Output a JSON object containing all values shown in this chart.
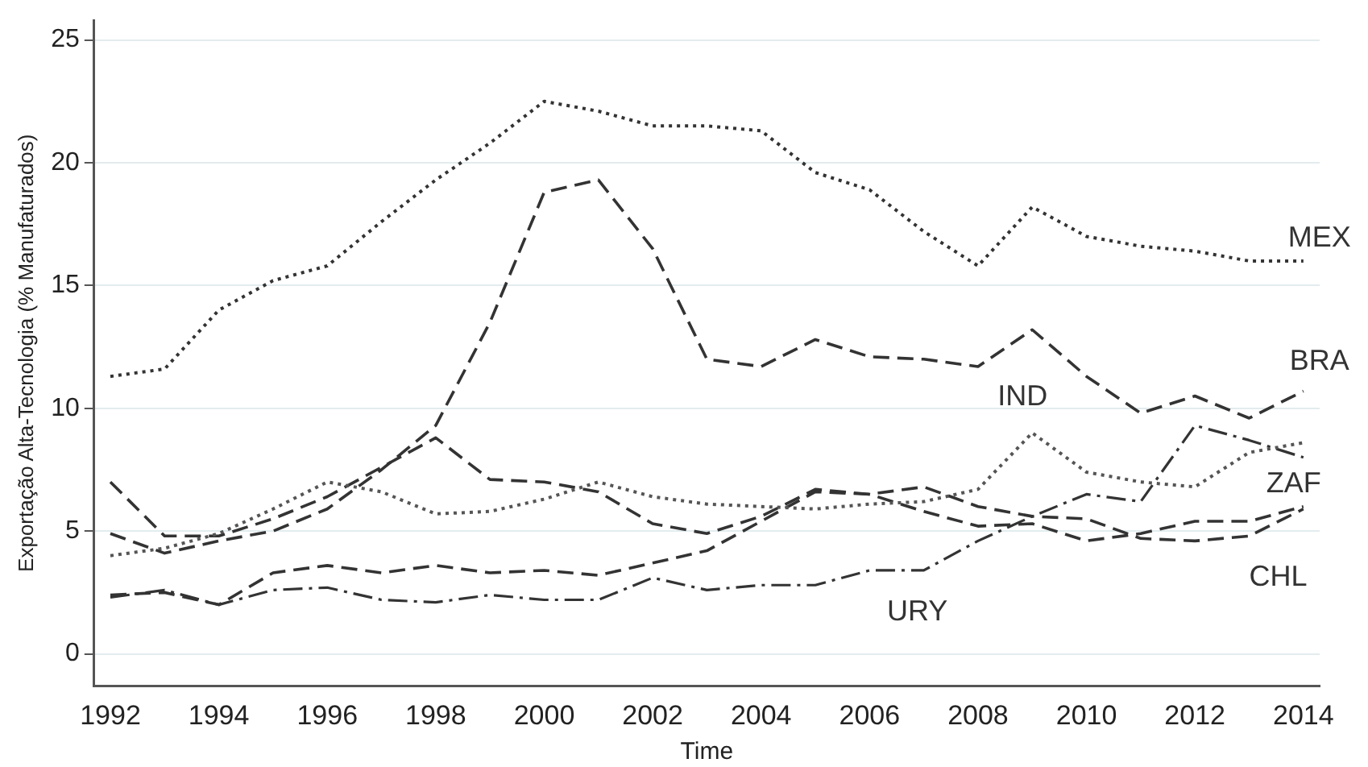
{
  "chart_data": {
    "type": "line",
    "xlabel": "Time",
    "ylabel": "Exportação Alta-Tecnologia (% Manufaturados)",
    "x": [
      1992,
      1993,
      1994,
      1995,
      1996,
      1997,
      1998,
      1999,
      2000,
      2001,
      2002,
      2003,
      2004,
      2005,
      2006,
      2007,
      2008,
      2009,
      2010,
      2011,
      2012,
      2013,
      2014
    ],
    "xlim": [
      1991.7,
      2014.3
    ],
    "xticks": [
      1992,
      1994,
      1996,
      1998,
      2000,
      2002,
      2004,
      2006,
      2008,
      2010,
      2012,
      2014
    ],
    "ylim": [
      -1.3,
      25.8
    ],
    "yticks": [
      0,
      5,
      10,
      15,
      20,
      25
    ],
    "grid": "y",
    "legend": false,
    "marker": "none",
    "series": [
      {
        "name": "MEX",
        "color": "#333333",
        "line_style": "dotted",
        "values": [
          11.3,
          11.6,
          14.0,
          15.2,
          15.8,
          17.6,
          19.3,
          20.8,
          22.5,
          22.1,
          21.5,
          21.5,
          21.3,
          19.6,
          18.9,
          17.2,
          15.8,
          18.2,
          17.0,
          16.6,
          16.4,
          16.0,
          16.0
        ]
      },
      {
        "name": "BRA",
        "color": "#333333",
        "line_style": "dashed",
        "values": [
          4.9,
          4.1,
          4.6,
          5.0,
          5.9,
          7.5,
          9.3,
          13.5,
          18.8,
          19.3,
          16.5,
          12.0,
          11.7,
          12.8,
          12.1,
          12.0,
          11.7,
          13.2,
          11.3,
          9.8,
          10.5,
          9.6,
          10.7
        ]
      },
      {
        "name": "IND",
        "color": "#555555",
        "line_style": "dotted",
        "values": [
          4.0,
          4.3,
          4.9,
          5.9,
          7.0,
          6.6,
          5.7,
          5.8,
          6.3,
          7.0,
          6.4,
          6.1,
          6.0,
          5.9,
          6.1,
          6.2,
          6.7,
          9.0,
          7.4,
          7.0,
          6.8,
          8.2,
          8.6
        ]
      },
      {
        "name": "ZAF",
        "color": "#333333",
        "line_style": "dashed",
        "values": [
          7.0,
          4.8,
          4.8,
          5.5,
          6.4,
          7.6,
          8.8,
          7.1,
          7.0,
          6.6,
          5.3,
          4.9,
          5.6,
          6.7,
          6.5,
          5.8,
          5.2,
          5.3,
          4.6,
          4.9,
          5.4,
          5.4,
          6.0
        ]
      },
      {
        "name": "CHL",
        "color": "#333333",
        "line_style": "dashed",
        "values": [
          2.4,
          2.5,
          2.0,
          3.3,
          3.6,
          3.3,
          3.6,
          3.3,
          3.4,
          3.2,
          3.7,
          4.2,
          5.4,
          6.6,
          6.5,
          6.8,
          6.0,
          5.6,
          5.5,
          4.7,
          4.6,
          4.8,
          5.9
        ]
      },
      {
        "name": "URY",
        "color": "#333333",
        "line_style": "dashdot",
        "values": [
          2.3,
          2.6,
          2.0,
          2.6,
          2.7,
          2.2,
          2.1,
          2.4,
          2.2,
          2.2,
          3.1,
          2.6,
          2.8,
          2.8,
          3.4,
          3.4,
          4.6,
          5.6,
          6.5,
          6.2,
          9.3,
          8.7,
          8.0
        ]
      }
    ]
  }
}
